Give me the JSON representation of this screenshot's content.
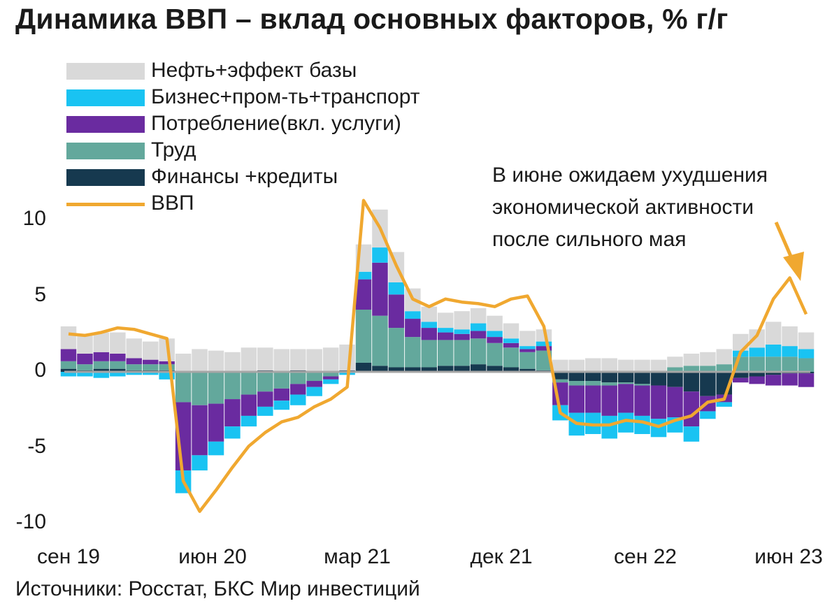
{
  "title": "Динамика ВВП – вклад основных факторов, % г/г",
  "source": "Источники: Росстат, БКС Мир инвестиций",
  "annotation": [
    "В июне ожидаем ухудшения",
    "экономической  активности",
    "после сильного мая"
  ],
  "colors": {
    "oil": "#d9d9d9",
    "business": "#19c3f2",
    "consumption": "#6a2ba0",
    "labor": "#63a89c",
    "finance": "#16394f",
    "gdp": "#f0a830",
    "zero_line": "#a6a6a6",
    "arrow": "#f0a830"
  },
  "chart_data": {
    "type": "area",
    "title": "Динамика ВВП – вклад основных факторов, % г/г",
    "ylim": [
      -10,
      12
    ],
    "yticks": [
      "10",
      "5",
      "0",
      "-5",
      "-10"
    ],
    "ytick_values": [
      10,
      5,
      0,
      -5,
      -10
    ],
    "xticks": [
      "сен 19",
      "июн 20",
      "мар 21",
      "дек 21",
      "сен 22",
      "июн 23"
    ],
    "legend_position": "top-left",
    "grid": false,
    "x": [
      "2019-09",
      "2019-10",
      "2019-11",
      "2019-12",
      "2020-01",
      "2020-02",
      "2020-03",
      "2020-04",
      "2020-05",
      "2020-06",
      "2020-07",
      "2020-08",
      "2020-09",
      "2020-10",
      "2020-11",
      "2020-12",
      "2021-01",
      "2021-02",
      "2021-03",
      "2021-04",
      "2021-05",
      "2021-06",
      "2021-07",
      "2021-08",
      "2021-09",
      "2021-10",
      "2021-11",
      "2021-12",
      "2022-01",
      "2022-02",
      "2022-03",
      "2022-04",
      "2022-05",
      "2022-06",
      "2022-07",
      "2022-08",
      "2022-09",
      "2022-10",
      "2022-11",
      "2022-12",
      "2023-01",
      "2023-02",
      "2023-03",
      "2023-04",
      "2023-05",
      "2023-06"
    ],
    "series": [
      {
        "name": "Нефть+эффект базы",
        "type": "stacked-bar",
        "values": [
          1.5,
          1.3,
          1.3,
          1.4,
          1.3,
          1.2,
          1.5,
          1.2,
          1.5,
          1.4,
          1.3,
          1.6,
          1.5,
          1.5,
          1.4,
          1.5,
          1.6,
          1.7,
          1.8,
          2.5,
          2.0,
          1.5,
          1.0,
          1.0,
          1.2,
          1.0,
          1.0,
          1.0,
          1.0,
          0.8,
          0.8,
          0.8,
          0.9,
          0.9,
          0.8,
          0.8,
          0.8,
          0.7,
          0.8,
          0.9,
          1.0,
          1.1,
          1.2,
          1.5,
          1.3,
          1.1
        ]
      },
      {
        "name": "Бизнес+пром-ть+транспорт",
        "type": "stacked-bar",
        "values": [
          -0.3,
          -0.3,
          -0.4,
          -0.3,
          -0.2,
          -0.2,
          -0.5,
          -1.5,
          -1.0,
          -0.9,
          -0.8,
          -0.7,
          -0.6,
          -0.6,
          -0.7,
          -0.6,
          -0.3,
          -0.2,
          0.5,
          1.0,
          0.8,
          0.5,
          0.4,
          0.3,
          0.3,
          0.5,
          0.4,
          0.3,
          0.2,
          0.3,
          -1.0,
          -1.5,
          -1.4,
          -1.5,
          -1.3,
          -1.2,
          -1.2,
          -1.0,
          -1.0,
          -0.5,
          -0.3,
          0.4,
          0.6,
          0.8,
          0.7,
          0.6
        ]
      },
      {
        "name": "Потребление(вкл. услуги)",
        "type": "stacked-bar",
        "values": [
          0.8,
          0.7,
          0.6,
          0.5,
          0.4,
          0.3,
          0.2,
          -4.5,
          -3.3,
          -2.5,
          -1.8,
          -1.4,
          -1.0,
          -0.8,
          -0.7,
          -0.4,
          -0.2,
          0.0,
          2.0,
          3.5,
          2.2,
          1.2,
          0.8,
          0.5,
          0.4,
          0.5,
          0.4,
          0.3,
          0.2,
          0.3,
          -1.5,
          -1.8,
          -1.8,
          -2.0,
          -1.9,
          -2.0,
          -2.2,
          -2.0,
          -2.3,
          -1.0,
          -0.5,
          -0.3,
          -0.5,
          -0.7,
          -0.8,
          -0.9
        ]
      },
      {
        "name": "Труд",
        "type": "stacked-bar",
        "values": [
          0.5,
          0.4,
          0.5,
          0.5,
          0.4,
          0.4,
          0.4,
          -2.0,
          -2.2,
          -2.1,
          -1.8,
          -1.5,
          -1.3,
          -1.1,
          -0.8,
          -0.6,
          -0.3,
          0.0,
          3.5,
          3.3,
          2.6,
          2.0,
          1.8,
          1.7,
          1.7,
          1.7,
          1.5,
          1.3,
          1.1,
          1.3,
          -0.2,
          -0.3,
          -0.3,
          -0.2,
          -0.1,
          -0.1,
          0.0,
          0.3,
          0.4,
          0.4,
          0.5,
          1.0,
          1.0,
          1.0,
          1.0,
          0.9
        ]
      },
      {
        "name": "Финансы +кредиты",
        "type": "stacked-bar",
        "values": [
          0.2,
          0.1,
          0.2,
          0.2,
          0.1,
          0.1,
          0.1,
          0.0,
          0.0,
          0.0,
          0.0,
          0.0,
          0.1,
          0.0,
          0.1,
          0.0,
          0.0,
          0.1,
          0.6,
          0.4,
          0.3,
          0.3,
          0.3,
          0.4,
          0.4,
          0.5,
          0.4,
          0.3,
          0.2,
          0.1,
          -0.5,
          -0.6,
          -0.6,
          -0.7,
          -0.7,
          -0.8,
          -0.9,
          -1.0,
          -1.3,
          -1.6,
          -1.5,
          -0.4,
          -0.3,
          -0.2,
          -0.1,
          -0.1
        ]
      },
      {
        "name": "ВВП",
        "type": "line",
        "values": [
          2.5,
          2.4,
          2.6,
          2.9,
          2.8,
          2.5,
          2.2,
          -7.2,
          -9.2,
          -7.8,
          -6.3,
          -4.9,
          -4.0,
          -3.3,
          -3.0,
          -2.3,
          -1.8,
          -1.0,
          11.3,
          9.5,
          7.0,
          4.8,
          4.3,
          4.8,
          4.6,
          4.5,
          4.3,
          4.8,
          5.0,
          3.0,
          -2.7,
          -3.4,
          -3.5,
          -3.5,
          -3.2,
          -3.3,
          -3.6,
          -3.2,
          -2.9,
          -2.0,
          -1.8,
          1.3,
          2.4,
          4.8,
          6.2,
          3.8
        ]
      }
    ]
  }
}
